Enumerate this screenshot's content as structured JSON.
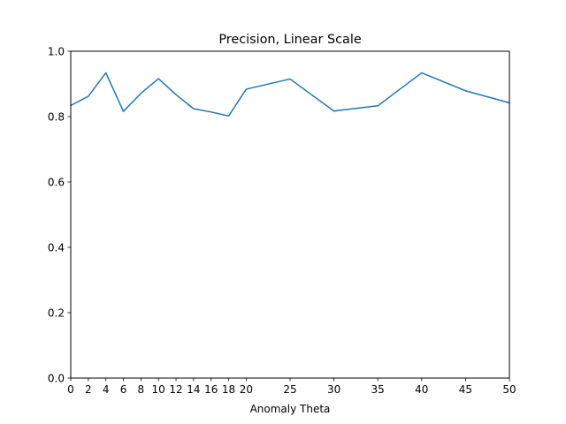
{
  "chart_data": {
    "type": "line",
    "title": "Precision, Linear Scale",
    "xlabel": "Anomaly Theta",
    "ylabel": "",
    "xlim": [
      0,
      50
    ],
    "ylim": [
      0.0,
      1.0
    ],
    "x_ticks": [
      0,
      2,
      4,
      6,
      8,
      10,
      12,
      14,
      16,
      18,
      20,
      25,
      30,
      35,
      40,
      45,
      50
    ],
    "y_ticks": [
      0.0,
      0.2,
      0.4,
      0.6,
      0.8,
      1.0
    ],
    "y_tick_labels": [
      "0.0",
      "0.2",
      "0.4",
      "0.6",
      "0.8",
      "1.0"
    ],
    "grid": false,
    "series": [
      {
        "color": "#1f77b4",
        "x": [
          0,
          2,
          4,
          6,
          8,
          10,
          12,
          14,
          16,
          18,
          20,
          25,
          30,
          35,
          40,
          45,
          50
        ],
        "values": [
          0.834,
          0.862,
          0.934,
          0.816,
          0.871,
          0.916,
          0.867,
          0.824,
          0.814,
          0.802,
          0.884,
          0.915,
          0.817,
          0.833,
          0.934,
          0.879,
          0.842
        ]
      }
    ]
  }
}
